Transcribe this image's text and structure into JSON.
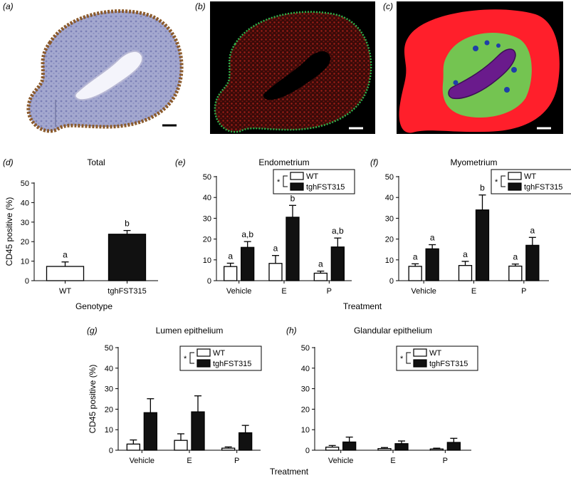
{
  "panel_letters": [
    "(a)",
    "(b)",
    "(c)",
    "(d)",
    "(e)",
    "(f)",
    "(g)",
    "(h)"
  ],
  "colors": {
    "wt_fill": "#ffffff",
    "tgh_fill": "#111111",
    "map_red": "#ff1f2b",
    "map_green": "#74c451",
    "map_purple": "#6a1b8c",
    "map_blue": "#1f3fa8",
    "ihc_tissue": "#9aa0c8",
    "ihc_brown": "#8b5a2b",
    "fluor_red": "#8a1a14",
    "fluor_green": "#2bb24a"
  },
  "legend": {
    "star": "*",
    "wt": "WT",
    "tgh": "tghFST315"
  },
  "shared_labels": {
    "ylabel": "CD45 positive (%)",
    "genotype_xlabel": "Genotype",
    "treatment_xlabel_top": "Treatment",
    "treatment_xlabel_bottom": "Treatment"
  },
  "chart_data": [
    {
      "panel": "(d)",
      "type": "bar",
      "title": "Total",
      "xlabel": "Genotype",
      "ylabel": "CD45 positive (%)",
      "ylim": [
        0,
        50
      ],
      "yticks": [
        0,
        10,
        20,
        30,
        40,
        50
      ],
      "categories": [
        "WT",
        "tghFST315"
      ],
      "series": [
        {
          "values": [
            7.3,
            23.8
          ],
          "errors": [
            2.3,
            1.9
          ],
          "letters": [
            "a",
            "b"
          ]
        }
      ]
    },
    {
      "panel": "(e)",
      "type": "bar",
      "title": "Endometrium",
      "xlabel": "Treatment",
      "ylim": [
        0,
        50
      ],
      "yticks": [
        0,
        10,
        20,
        30,
        40,
        50
      ],
      "categories": [
        "Vehicle",
        "E",
        "P"
      ],
      "legend": true,
      "series": [
        {
          "name": "WT",
          "values": [
            6.8,
            8.3,
            3.6
          ],
          "errors": [
            1.6,
            3.8,
            1.0
          ],
          "letters": [
            "a",
            "a",
            "a"
          ]
        },
        {
          "name": "tghFST315",
          "values": [
            16.0,
            30.5,
            16.2
          ],
          "errors": [
            2.8,
            5.7,
            4.3
          ],
          "letters": [
            "a,b",
            "b",
            "a,b"
          ]
        }
      ]
    },
    {
      "panel": "(f)",
      "type": "bar",
      "title": "Myometrium",
      "xlabel": "Treatment",
      "ylim": [
        0,
        50
      ],
      "yticks": [
        0,
        10,
        20,
        30,
        40,
        50
      ],
      "categories": [
        "Vehicle",
        "E",
        "P"
      ],
      "legend": true,
      "series": [
        {
          "name": "WT",
          "values": [
            6.9,
            7.3,
            7.0
          ],
          "errors": [
            1.2,
            2.0,
            1.0
          ],
          "letters": [
            "a",
            "a",
            "a"
          ]
        },
        {
          "name": "tghFST315",
          "values": [
            15.3,
            34.0,
            17.0
          ],
          "errors": [
            2.0,
            7.2,
            3.8
          ],
          "letters": [
            "a",
            "b",
            "a"
          ]
        }
      ]
    },
    {
      "panel": "(g)",
      "type": "bar",
      "title": "Lumen epithelium",
      "xlabel": "Treatment",
      "ylabel": "CD45 positive (%)",
      "ylim": [
        0,
        50
      ],
      "yticks": [
        0,
        10,
        20,
        30,
        40,
        50
      ],
      "categories": [
        "Vehicle",
        "E",
        "P"
      ],
      "legend": true,
      "series": [
        {
          "name": "WT",
          "values": [
            3.0,
            4.8,
            1.0
          ],
          "errors": [
            2.0,
            3.2,
            0.6
          ],
          "letters": [
            "",
            "",
            ""
          ]
        },
        {
          "name": "tghFST315",
          "values": [
            18.3,
            18.7,
            8.5
          ],
          "errors": [
            6.8,
            7.8,
            3.6
          ],
          "letters": [
            "",
            "",
            ""
          ]
        }
      ]
    },
    {
      "panel": "(h)",
      "type": "bar",
      "title": "Glandular epithelium",
      "xlabel": "",
      "ylim": [
        0,
        50
      ],
      "yticks": [
        0,
        10,
        20,
        30,
        40,
        50
      ],
      "categories": [
        "Vehicle",
        "E",
        "P"
      ],
      "legend": true,
      "series": [
        {
          "name": "WT",
          "values": [
            1.5,
            0.8,
            0.6
          ],
          "errors": [
            0.8,
            0.5,
            0.4
          ],
          "letters": [
            "",
            "",
            ""
          ]
        },
        {
          "name": "tghFST315",
          "values": [
            4.0,
            3.2,
            3.8
          ],
          "errors": [
            2.4,
            1.3,
            2.0
          ],
          "letters": [
            "",
            "",
            ""
          ]
        }
      ]
    }
  ]
}
